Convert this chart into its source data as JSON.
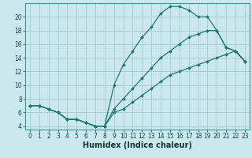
{
  "xlabel": "Humidex (Indice chaleur)",
  "background_color": "#cce8ef",
  "grid_color": "#aacdd6",
  "line_color": "#1a7a6e",
  "xlim": [
    -0.5,
    23.5
  ],
  "ylim": [
    3.5,
    22
  ],
  "xticks": [
    0,
    1,
    2,
    3,
    4,
    5,
    6,
    7,
    8,
    9,
    10,
    11,
    12,
    13,
    14,
    15,
    16,
    17,
    18,
    19,
    20,
    21,
    22,
    23
  ],
  "yticks": [
    4,
    6,
    8,
    10,
    12,
    14,
    16,
    18,
    20
  ],
  "line1_x": [
    0,
    1,
    2,
    3,
    4,
    5,
    6,
    7,
    8,
    9,
    10,
    11,
    12,
    13,
    14,
    15,
    16,
    17,
    18,
    19,
    20,
    21,
    22,
    23
  ],
  "line1_y": [
    7,
    7,
    6.5,
    6,
    5,
    5,
    4.5,
    4,
    4,
    10,
    13,
    15,
    17,
    18.5,
    20.5,
    21.5,
    21.5,
    21,
    20,
    20,
    18,
    15.5,
    15,
    13.5
  ],
  "line2_x": [
    0,
    1,
    2,
    3,
    4,
    5,
    6,
    7,
    8,
    9,
    10,
    11,
    12,
    13,
    14,
    15,
    16,
    17,
    18,
    19,
    20,
    21,
    22,
    23
  ],
  "line2_y": [
    7,
    7,
    6.5,
    6,
    5,
    5,
    4.5,
    4,
    4,
    6.5,
    8,
    9.5,
    11,
    12.5,
    14,
    15,
    16,
    17,
    17.5,
    18,
    18,
    15.5,
    15,
    13.5
  ],
  "line3_x": [
    0,
    1,
    2,
    3,
    4,
    5,
    6,
    7,
    8,
    9,
    10,
    11,
    12,
    13,
    14,
    15,
    16,
    17,
    18,
    19,
    20,
    21,
    22,
    23
  ],
  "line3_y": [
    7,
    7,
    6.5,
    6,
    5,
    5,
    4.5,
    4,
    4,
    6,
    6.5,
    7.5,
    8.5,
    9.5,
    10.5,
    11.5,
    12,
    12.5,
    13,
    13.5,
    14,
    14.5,
    15,
    13.5
  ]
}
